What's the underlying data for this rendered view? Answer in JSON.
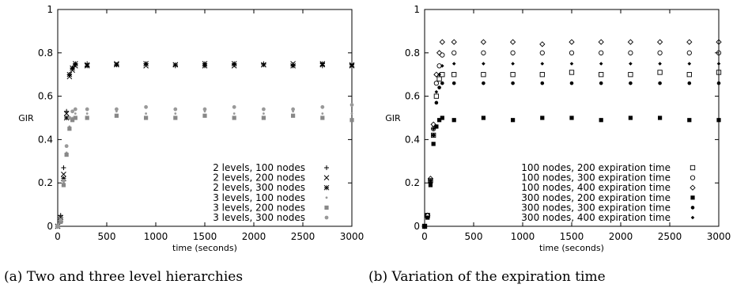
{
  "chart_data": [
    {
      "type": "scatter",
      "caption": "(a) Two and three level hierarchies",
      "xlabel": "time (seconds)",
      "ylabel": "GIR",
      "xlim": [
        0,
        3000
      ],
      "ylim": [
        0,
        1
      ],
      "xticks": [
        "0",
        "500",
        "1000",
        "1500",
        "2000",
        "2500",
        "3000"
      ],
      "yticks": [
        "0",
        "0.2",
        "0.4",
        "0.6",
        "0.8",
        "1"
      ],
      "grid": false,
      "legend_position": "bottom-right",
      "series": [
        {
          "name": "2 levels, 100 nodes",
          "marker": "plus",
          "color": "#000000",
          "x": [
            0,
            30,
            60,
            90,
            120,
            150,
            180,
            300,
            600,
            900,
            1200,
            1500,
            1800,
            2100,
            2400,
            2700,
            3000
          ],
          "y": [
            0.0,
            0.05,
            0.27,
            0.53,
            0.7,
            0.73,
            0.745,
            0.75,
            0.745,
            0.75,
            0.74,
            0.75,
            0.745,
            0.75,
            0.745,
            0.74,
            0.745
          ]
        },
        {
          "name": "2 levels, 200 nodes",
          "marker": "cross",
          "color": "#000000",
          "x": [
            0,
            30,
            60,
            90,
            120,
            150,
            180,
            300,
            600,
            900,
            1200,
            1500,
            1800,
            2100,
            2400,
            2700,
            3000
          ],
          "y": [
            0.0,
            0.04,
            0.24,
            0.52,
            0.69,
            0.72,
            0.74,
            0.745,
            0.75,
            0.74,
            0.745,
            0.75,
            0.74,
            0.745,
            0.75,
            0.745,
            0.74
          ]
        },
        {
          "name": "2 levels, 300 nodes",
          "marker": "star",
          "color": "#000000",
          "x": [
            0,
            30,
            60,
            90,
            120,
            150,
            180,
            300,
            600,
            900,
            1200,
            1500,
            1800,
            2100,
            2400,
            2700,
            3000
          ],
          "y": [
            0.0,
            0.03,
            0.22,
            0.5,
            0.7,
            0.73,
            0.75,
            0.74,
            0.745,
            0.75,
            0.745,
            0.74,
            0.75,
            0.745,
            0.74,
            0.75,
            0.745
          ]
        },
        {
          "name": "3 levels, 100 nodes",
          "marker": "dot",
          "color": "#999999",
          "x": [
            0,
            30,
            60,
            90,
            120,
            150,
            180,
            300,
            600,
            900,
            1200,
            1500,
            1800,
            2100,
            2400,
            2700,
            3000
          ],
          "y": [
            0.0,
            0.02,
            0.2,
            0.34,
            0.46,
            0.5,
            0.52,
            0.52,
            0.53,
            0.52,
            0.52,
            0.53,
            0.52,
            0.52,
            0.53,
            0.52,
            0.52
          ]
        },
        {
          "name": "3 levels, 200 nodes",
          "marker": "square",
          "color": "#888888",
          "x": [
            0,
            30,
            60,
            90,
            120,
            150,
            180,
            300,
            600,
            900,
            1200,
            1500,
            1800,
            2100,
            2400,
            2700,
            3000
          ],
          "y": [
            0.0,
            0.02,
            0.19,
            0.33,
            0.45,
            0.49,
            0.5,
            0.5,
            0.51,
            0.5,
            0.5,
            0.51,
            0.5,
            0.5,
            0.51,
            0.5,
            0.49
          ]
        },
        {
          "name": "3 levels, 300 nodes",
          "marker": "circle",
          "color": "#999999",
          "x": [
            0,
            30,
            60,
            90,
            120,
            150,
            180,
            300,
            600,
            900,
            1200,
            1500,
            1800,
            2100,
            2400,
            2700,
            3000
          ],
          "y": [
            0.0,
            0.03,
            0.21,
            0.37,
            0.5,
            0.53,
            0.54,
            0.54,
            0.54,
            0.55,
            0.54,
            0.54,
            0.55,
            0.54,
            0.54,
            0.55,
            0.56
          ]
        }
      ]
    },
    {
      "type": "scatter",
      "caption": "(b) Variation of the expiration time",
      "xlabel": "time (seconds)",
      "ylabel": "GIR",
      "xlim": [
        0,
        3000
      ],
      "ylim": [
        0,
        1
      ],
      "xticks": [
        "0",
        "500",
        "1000",
        "1500",
        "2000",
        "2500",
        "3000"
      ],
      "yticks": [
        "0",
        "0.2",
        "0.4",
        "0.6",
        "0.8",
        "1"
      ],
      "grid": false,
      "legend_position": "bottom-right",
      "series": [
        {
          "name": "100 nodes, 200 expiration time",
          "marker": "square-open",
          "color": "#000000",
          "x": [
            0,
            30,
            60,
            90,
            120,
            150,
            180,
            300,
            600,
            900,
            1200,
            1500,
            1800,
            2100,
            2400,
            2700,
            3000
          ],
          "y": [
            0.0,
            0.05,
            0.21,
            0.42,
            0.6,
            0.68,
            0.7,
            0.7,
            0.7,
            0.7,
            0.7,
            0.71,
            0.7,
            0.7,
            0.71,
            0.7,
            0.71
          ]
        },
        {
          "name": "100 nodes, 300 expiration time",
          "marker": "circle-open",
          "color": "#000000",
          "x": [
            0,
            30,
            60,
            90,
            120,
            150,
            180,
            300,
            600,
            900,
            1200,
            1500,
            1800,
            2100,
            2400,
            2700,
            3000
          ],
          "y": [
            0.0,
            0.05,
            0.21,
            0.45,
            0.66,
            0.74,
            0.79,
            0.8,
            0.8,
            0.8,
            0.8,
            0.8,
            0.8,
            0.8,
            0.8,
            0.8,
            0.8
          ]
        },
        {
          "name": "100 nodes, 400 expiration time",
          "marker": "diamond-open",
          "color": "#000000",
          "x": [
            0,
            30,
            60,
            90,
            120,
            150,
            180,
            300,
            600,
            900,
            1200,
            1500,
            1800,
            2100,
            2400,
            2700,
            3000
          ],
          "y": [
            0.0,
            0.05,
            0.22,
            0.47,
            0.7,
            0.8,
            0.85,
            0.85,
            0.85,
            0.85,
            0.84,
            0.85,
            0.85,
            0.85,
            0.85,
            0.85,
            0.85
          ]
        },
        {
          "name": "300 nodes, 200 expiration time",
          "marker": "square",
          "color": "#000000",
          "x": [
            0,
            30,
            60,
            90,
            120,
            150,
            180,
            300,
            600,
            900,
            1200,
            1500,
            1800,
            2100,
            2400,
            2700,
            3000
          ],
          "y": [
            0.0,
            0.04,
            0.19,
            0.38,
            0.46,
            0.49,
            0.5,
            0.49,
            0.5,
            0.49,
            0.5,
            0.5,
            0.49,
            0.5,
            0.5,
            0.49,
            0.49
          ]
        },
        {
          "name": "300 nodes, 300 expiration time",
          "marker": "dot-filled",
          "color": "#000000",
          "x": [
            0,
            30,
            60,
            90,
            120,
            150,
            180,
            300,
            600,
            900,
            1200,
            1500,
            1800,
            2100,
            2400,
            2700,
            3000
          ],
          "y": [
            0.0,
            0.04,
            0.2,
            0.42,
            0.57,
            0.64,
            0.66,
            0.66,
            0.66,
            0.66,
            0.66,
            0.66,
            0.66,
            0.66,
            0.66,
            0.66,
            0.66
          ]
        },
        {
          "name": "300 nodes, 400 expiration time",
          "marker": "diamond-filled",
          "color": "#000000",
          "x": [
            0,
            30,
            60,
            90,
            120,
            150,
            180,
            300,
            600,
            900,
            1200,
            1500,
            1800,
            2100,
            2400,
            2700,
            3000
          ],
          "y": [
            0.0,
            0.04,
            0.21,
            0.45,
            0.62,
            0.7,
            0.74,
            0.75,
            0.75,
            0.75,
            0.75,
            0.75,
            0.75,
            0.75,
            0.75,
            0.75,
            0.75
          ]
        }
      ]
    }
  ]
}
